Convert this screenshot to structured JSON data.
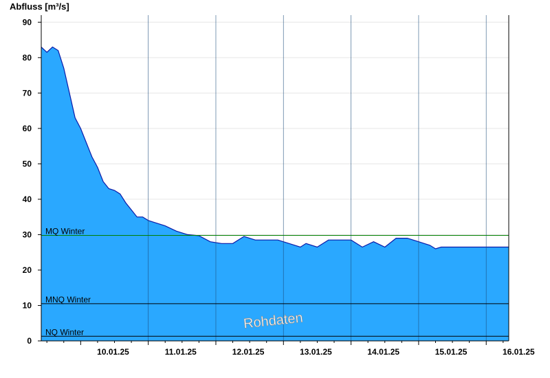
{
  "chart_data": {
    "type": "area",
    "ylabel": "Abfluss [m³/s]",
    "ylim": [
      0,
      92
    ],
    "yticks": [
      0,
      10,
      20,
      30,
      40,
      50,
      60,
      70,
      80,
      90
    ],
    "xlim": [
      "2025-01-09T10:00",
      "2025-01-16T08:00"
    ],
    "x_tick_labels": [
      "10.01.25",
      "11.01.25",
      "12.01.25",
      "13.01.25",
      "14.01.25",
      "15.01.25",
      "16.01.25"
    ],
    "x_tick_dates": [
      "2025-01-10",
      "2025-01-11",
      "2025-01-12",
      "2025-01-13",
      "2025-01-14",
      "2025-01-15",
      "2025-01-16"
    ],
    "grid": true,
    "colors": {
      "area": "#2aa8ff",
      "line": "#0a1aa8",
      "mq": "#008000",
      "mnq": "#000000",
      "nq": "#000000"
    },
    "reference_lines": [
      {
        "label": "MQ Winter",
        "value": 29.8,
        "color": "#008000"
      },
      {
        "label": "MNQ Winter",
        "value": 10.5,
        "color": "#000000"
      },
      {
        "label": "NQ Winter",
        "value": 1.3,
        "color": "#000000"
      }
    ],
    "watermark": "Rohdaten",
    "series": [
      {
        "x": [
          "2025-01-09T10:00",
          "2025-01-09T12:00",
          "2025-01-09T14:00",
          "2025-01-09T16:00",
          "2025-01-09T18:00",
          "2025-01-09T20:00",
          "2025-01-09T22:00",
          "2025-01-10T00:00",
          "2025-01-10T02:00",
          "2025-01-10T03:00",
          "2025-01-10T04:00",
          "2025-01-10T06:00",
          "2025-01-10T08:00",
          "2025-01-10T10:00",
          "2025-01-10T12:00",
          "2025-01-10T14:00",
          "2025-01-10T16:00",
          "2025-01-10T18:00",
          "2025-01-10T20:00",
          "2025-01-10T22:00",
          "2025-01-11T00:00",
          "2025-01-11T02:00",
          "2025-01-11T06:00",
          "2025-01-11T10:00",
          "2025-01-11T14:00",
          "2025-01-11T18:00",
          "2025-01-11T22:00",
          "2025-01-12T02:00",
          "2025-01-12T06:00",
          "2025-01-12T10:00",
          "2025-01-12T14:00",
          "2025-01-12T18:00",
          "2025-01-12T22:00",
          "2025-01-13T02:00",
          "2025-01-13T06:00",
          "2025-01-13T08:00",
          "2025-01-13T12:00",
          "2025-01-13T16:00",
          "2025-01-13T20:00",
          "2025-01-14T00:00",
          "2025-01-14T04:00",
          "2025-01-14T08:00",
          "2025-01-14T12:00",
          "2025-01-14T16:00",
          "2025-01-14T20:00",
          "2025-01-15T00:00",
          "2025-01-15T04:00",
          "2025-01-15T06:00",
          "2025-01-15T08:00",
          "2025-01-15T12:00",
          "2025-01-15T16:00",
          "2025-01-15T20:00",
          "2025-01-16T00:00",
          "2025-01-16T04:00",
          "2025-01-16T08:00"
        ],
        "values": [
          83,
          81.5,
          83,
          82,
          77,
          70,
          63,
          60,
          56,
          54,
          52,
          49,
          45,
          43,
          42.5,
          41.5,
          39,
          37,
          35,
          35,
          34,
          33.5,
          32.5,
          31,
          30,
          29.7,
          28,
          27.5,
          27.5,
          29.5,
          28.5,
          28.5,
          28.5,
          27.5,
          26.5,
          27.5,
          26.5,
          28.5,
          28.5,
          28.5,
          26.5,
          28,
          26.5,
          29,
          29,
          28,
          27,
          26,
          26.5,
          26.5,
          26.5,
          26.5,
          26.5,
          26.5,
          26.5
        ]
      }
    ]
  }
}
